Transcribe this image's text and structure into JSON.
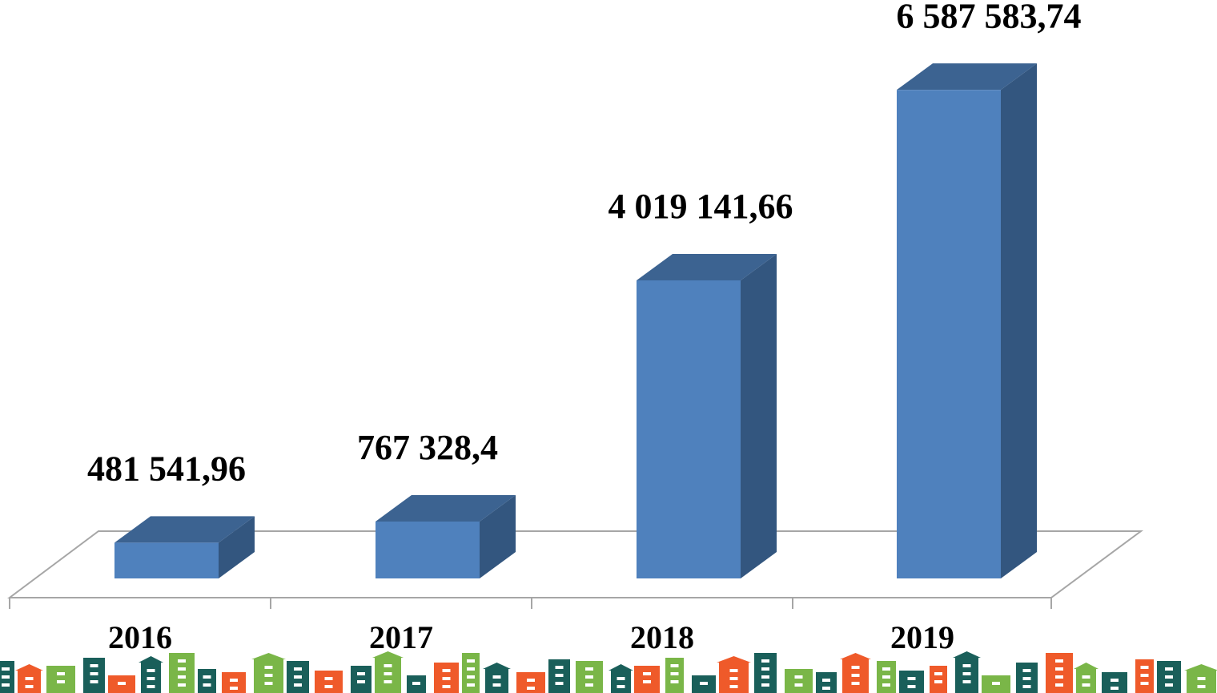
{
  "chart_data": {
    "type": "bar3d",
    "categories": [
      "2016",
      "2017",
      "2018",
      "2019"
    ],
    "values": [
      481541.96,
      767328.4,
      4019141.66,
      6587583.74
    ],
    "value_labels": [
      "481 541,96",
      "767 328,4",
      "4 019 141,66",
      "6 587 583,74"
    ],
    "color": "#4f81bd",
    "ylim": [
      0,
      7000000
    ]
  }
}
